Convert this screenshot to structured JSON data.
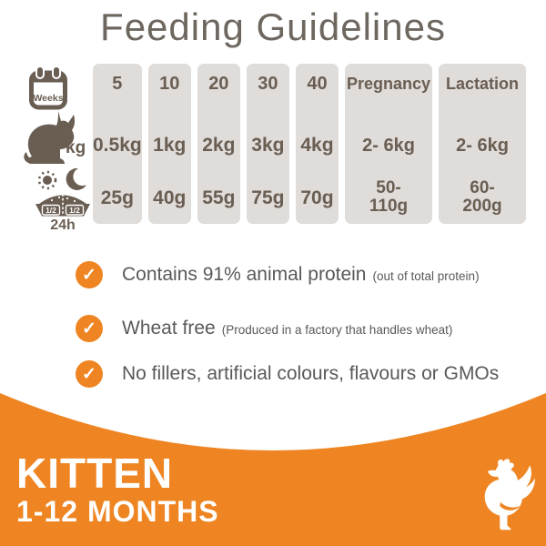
{
  "title": "Feeding Guidelines",
  "table": {
    "row_labels": {
      "weeks_label": "Weeks",
      "kg_label": "kg",
      "half_left": "1/2",
      "half_right": "1/2",
      "daily_label": "24h"
    },
    "columns": [
      {
        "weeks": "5",
        "weight": "0.5kg",
        "amount": "25g"
      },
      {
        "weeks": "10",
        "weight": "1kg",
        "amount": "40g"
      },
      {
        "weeks": "20",
        "weight": "2kg",
        "amount": "55g"
      },
      {
        "weeks": "30",
        "weight": "3kg",
        "amount": "75g"
      },
      {
        "weeks": "40",
        "weight": "4kg",
        "amount": "70g"
      },
      {
        "weeks": "Pregnancy",
        "weight": "2- 6kg",
        "amount": "50-\n110g",
        "wide": true
      },
      {
        "weeks": "Lactation",
        "weight": "2- 6kg",
        "amount": "60-\n200g",
        "wide": true
      }
    ]
  },
  "chart_data": {
    "type": "table",
    "title": "Feeding Guidelines",
    "columns": [
      "5",
      "10",
      "20",
      "30",
      "40",
      "Pregnancy",
      "Lactation"
    ],
    "rows": [
      {
        "label": "Weeks",
        "values": [
          "5",
          "10",
          "20",
          "30",
          "40",
          "Pregnancy",
          "Lactation"
        ]
      },
      {
        "label": "Weight (kg)",
        "values": [
          "0.5kg",
          "1kg",
          "2kg",
          "3kg",
          "4kg",
          "2- 6kg",
          "2- 6kg"
        ]
      },
      {
        "label": "Food per 24h (1/2 + 1/2)",
        "values": [
          "25g",
          "40g",
          "55g",
          "75g",
          "70g",
          "50-110g",
          "60-200g"
        ]
      }
    ]
  },
  "benefits": [
    {
      "main": "Contains 91% animal protein",
      "note": "(out of total protein)"
    },
    {
      "main": "Wheat free",
      "note": "(Produced in a factory that handles wheat)"
    },
    {
      "main": "No fillers, artificial colours, flavours or GMOs",
      "note": ""
    }
  ],
  "banner": {
    "product_name": "KITTEN",
    "age_range": "1-12 MONTHS"
  },
  "icons": {
    "check_glyph": "✓",
    "calendar_icon": "weeks-calendar",
    "cat_icon": "cat-weight",
    "sun_icon": "day",
    "moon_icon": "night",
    "bowl_icon": "food-bowl-split",
    "hen_icon": "chicken"
  },
  "colors": {
    "orange": "#ee8522",
    "column_gray": "#dfdcd9",
    "icon_brown": "#6a5e53",
    "title_gray": "#6e675f",
    "benefit_gray": "#58595b",
    "white": "#ffffff"
  }
}
